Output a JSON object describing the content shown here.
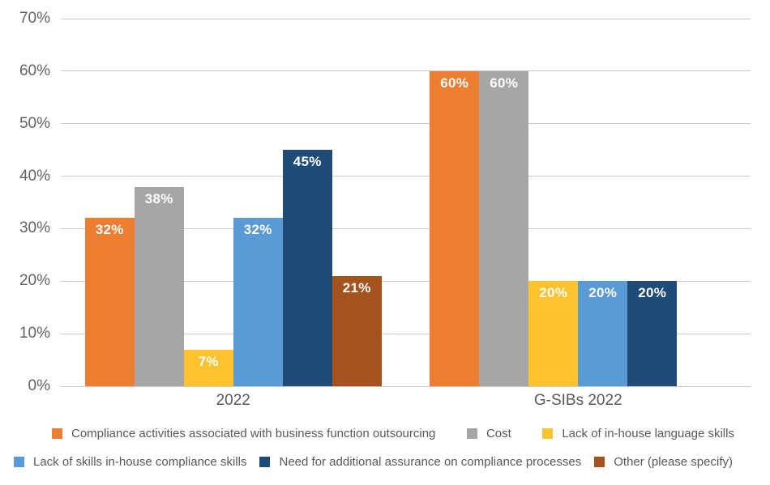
{
  "chart_data": {
    "type": "bar",
    "categories": [
      "2022",
      "G-SIBs 2022"
    ],
    "series": [
      {
        "name": "Compliance activities associated with business function outsourcing",
        "color": "#ED7D31",
        "values": [
          32,
          60
        ]
      },
      {
        "name": "Cost",
        "color": "#A6A6A6",
        "values": [
          38,
          60
        ]
      },
      {
        "name": "Lack of in-house language skills",
        "color": "#FCC32E",
        "values": [
          7,
          20
        ]
      },
      {
        "name": "Lack of skills in-house compliance skills",
        "color": "#5B9BD5",
        "values": [
          32,
          20
        ]
      },
      {
        "name": "Need for additional assurance on compliance processes",
        "color": "#1E4B78",
        "values": [
          45,
          20
        ]
      },
      {
        "name": "Other (please specify)",
        "color": "#A4531E",
        "values": [
          21,
          0
        ]
      }
    ],
    "value_label_suffix": "%",
    "yticks": [
      0,
      10,
      20,
      30,
      40,
      50,
      60,
      70
    ],
    "ytick_suffix": "%",
    "ylim": [
      0,
      70
    ],
    "grid": true,
    "legend_position": "bottom",
    "legend_rows": [
      [
        0,
        1,
        2
      ],
      [
        3,
        4,
        5
      ]
    ]
  },
  "colors": {
    "grid_line": "#CBCBCB",
    "axis_tick_text": "#636363",
    "category_text": "#595959",
    "legend_text": "#595959",
    "bar_label_text": "#FFFFFF",
    "background": "#FFFFFF"
  }
}
